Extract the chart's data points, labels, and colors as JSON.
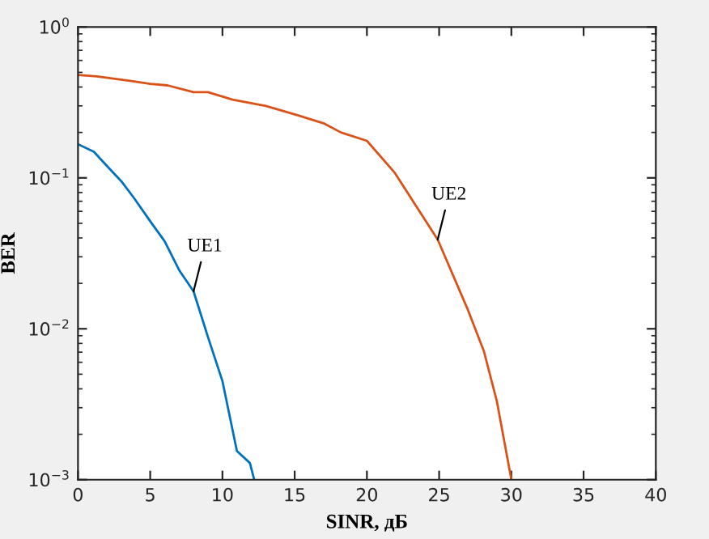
{
  "chart_data": {
    "type": "line",
    "xlabel": "SINR, дБ",
    "ylabel": "BER",
    "log": "y",
    "xlim": [
      0,
      40
    ],
    "xticks": [
      0,
      5,
      10,
      15,
      20,
      25,
      30,
      35,
      40
    ],
    "ylim": [
      0.001,
      1
    ],
    "yticks": [
      {
        "value": 0.001,
        "label": "10$^{−3}$"
      },
      {
        "value": 0.01,
        "label": "10$^{−2}$"
      },
      {
        "value": 0.1,
        "label": "10$^{−1}$"
      },
      {
        "value": 1,
        "label": "10$^{0}$"
      }
    ],
    "grid": false,
    "marker": "none",
    "line_style": "solid",
    "series": [
      {
        "color": "#0072bd",
        "x": [
          0,
          1.1,
          2,
          3,
          3.9,
          5.1,
          6,
          7,
          8,
          9,
          10,
          11,
          11.9,
          12.2
        ],
        "values": [
          0.167,
          0.149,
          0.12,
          0.095,
          0.073,
          0.05,
          0.038,
          0.0245,
          0.0177,
          0.0088,
          0.0045,
          0.00155,
          0.00129,
          0.001
        ]
      },
      {
        "color": "#d95319",
        "x": [
          0,
          1.3,
          3.6,
          5,
          6.2,
          8,
          9,
          10.7,
          13,
          15.2,
          17,
          18.2,
          20,
          21.9,
          24.9,
          27,
          28.1,
          29,
          30
        ],
        "values": [
          0.48,
          0.47,
          0.44,
          0.42,
          0.41,
          0.37,
          0.37,
          0.33,
          0.3,
          0.26,
          0.23,
          0.2,
          0.176,
          0.109,
          0.039,
          0.0133,
          0.0071,
          0.0033,
          0.001
        ]
      }
    ],
    "annotations": [
      {
        "text": "UE1",
        "x": 8,
        "y": 0.0177
      },
      {
        "text": "UE2",
        "x": 24.9,
        "y": 0.039
      }
    ]
  }
}
